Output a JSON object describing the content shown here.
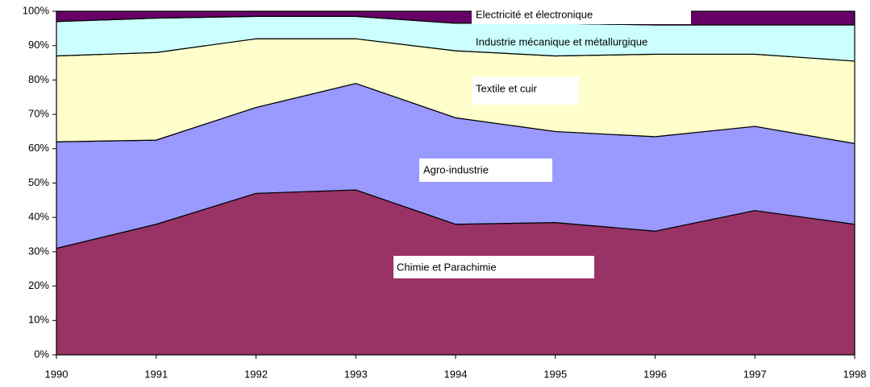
{
  "chart_data": {
    "type": "area",
    "stacked": true,
    "categories": [
      "1990",
      "1991",
      "1992",
      "1993",
      "1994",
      "1995",
      "1996",
      "1997",
      "1998"
    ],
    "series": [
      {
        "name": "Chimie et Parachimie",
        "color": "#993366",
        "values": [
          31,
          38,
          47,
          48,
          38,
          38.5,
          36,
          42,
          38
        ]
      },
      {
        "name": "Agro-industrie",
        "color": "#9999ff",
        "values": [
          31,
          24.5,
          25,
          31,
          31,
          26.5,
          27.5,
          24.5,
          23.5
        ]
      },
      {
        "name": "Textile et cuir",
        "color": "#ffffcc",
        "values": [
          25,
          25.5,
          20,
          13,
          19.5,
          22,
          24,
          21,
          24
        ]
      },
      {
        "name": "Industrie mécanique et métallurgique",
        "color": "#ccffff",
        "values": [
          10,
          10,
          6.5,
          6.5,
          8,
          9.5,
          8.5,
          8.5,
          10.5
        ]
      },
      {
        "name": "Electricité et électronique",
        "color": "#660066",
        "values": [
          3,
          2,
          1.5,
          1.5,
          3.5,
          3.5,
          4,
          4,
          4
        ]
      }
    ],
    "ylim": [
      0,
      100
    ],
    "yticks": [
      {
        "value": 0,
        "label": "0%"
      },
      {
        "value": 10,
        "label": "10%"
      },
      {
        "value": 20,
        "label": "20%"
      },
      {
        "value": 30,
        "label": "30%"
      },
      {
        "value": 40,
        "label": "40%"
      },
      {
        "value": 50,
        "label": "50%"
      },
      {
        "value": 60,
        "label": "60%"
      },
      {
        "value": 70,
        "label": "70%"
      },
      {
        "value": 80,
        "label": "80%"
      },
      {
        "value": 90,
        "label": "90%"
      },
      {
        "value": 100,
        "label": "100%"
      }
    ]
  }
}
